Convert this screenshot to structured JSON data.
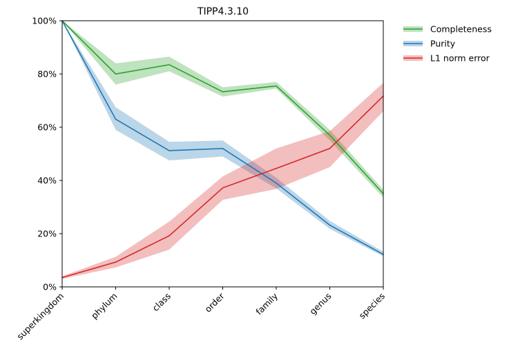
{
  "chart_data": {
    "type": "line",
    "title": "TIPP4.3.10",
    "xlabel": "",
    "ylabel": "",
    "categories": [
      "superkingdom",
      "phylum",
      "class",
      "order",
      "family",
      "genus",
      "species"
    ],
    "ylim": [
      0,
      100
    ],
    "yticks": [
      0,
      20,
      40,
      60,
      80,
      100
    ],
    "ytick_labels": [
      "0%",
      "20%",
      "40%",
      "60%",
      "80%",
      "100%"
    ],
    "grid": false,
    "legend_position": "outside-top-right",
    "series": [
      {
        "name": "Completeness",
        "color": "#2ca02c",
        "values": [
          100,
          80.0,
          83.5,
          73.3,
          75.5,
          57.0,
          35.0
        ],
        "lower": [
          100,
          76.0,
          81.0,
          71.5,
          74.5,
          55.0,
          33.5
        ],
        "upper": [
          100,
          84.0,
          86.5,
          75.0,
          77.0,
          59.0,
          36.5
        ]
      },
      {
        "name": "Purity",
        "color": "#1f77b4",
        "values": [
          100,
          63.0,
          51.2,
          52.0,
          39.0,
          23.2,
          12.2
        ],
        "lower": [
          100,
          59.0,
          47.5,
          49.0,
          37.0,
          21.8,
          11.5
        ],
        "upper": [
          100,
          67.5,
          54.5,
          55.0,
          41.0,
          24.8,
          13.2
        ]
      },
      {
        "name": "L1 norm error",
        "color": "#d62728",
        "values": [
          3.5,
          9.3,
          19.2,
          37.2,
          44.5,
          52.0,
          71.7
        ],
        "lower": [
          3.0,
          7.3,
          14.0,
          32.7,
          36.8,
          45.0,
          66.0
        ],
        "upper": [
          4.0,
          11.3,
          24.5,
          41.5,
          52.0,
          58.5,
          76.7
        ]
      }
    ]
  }
}
